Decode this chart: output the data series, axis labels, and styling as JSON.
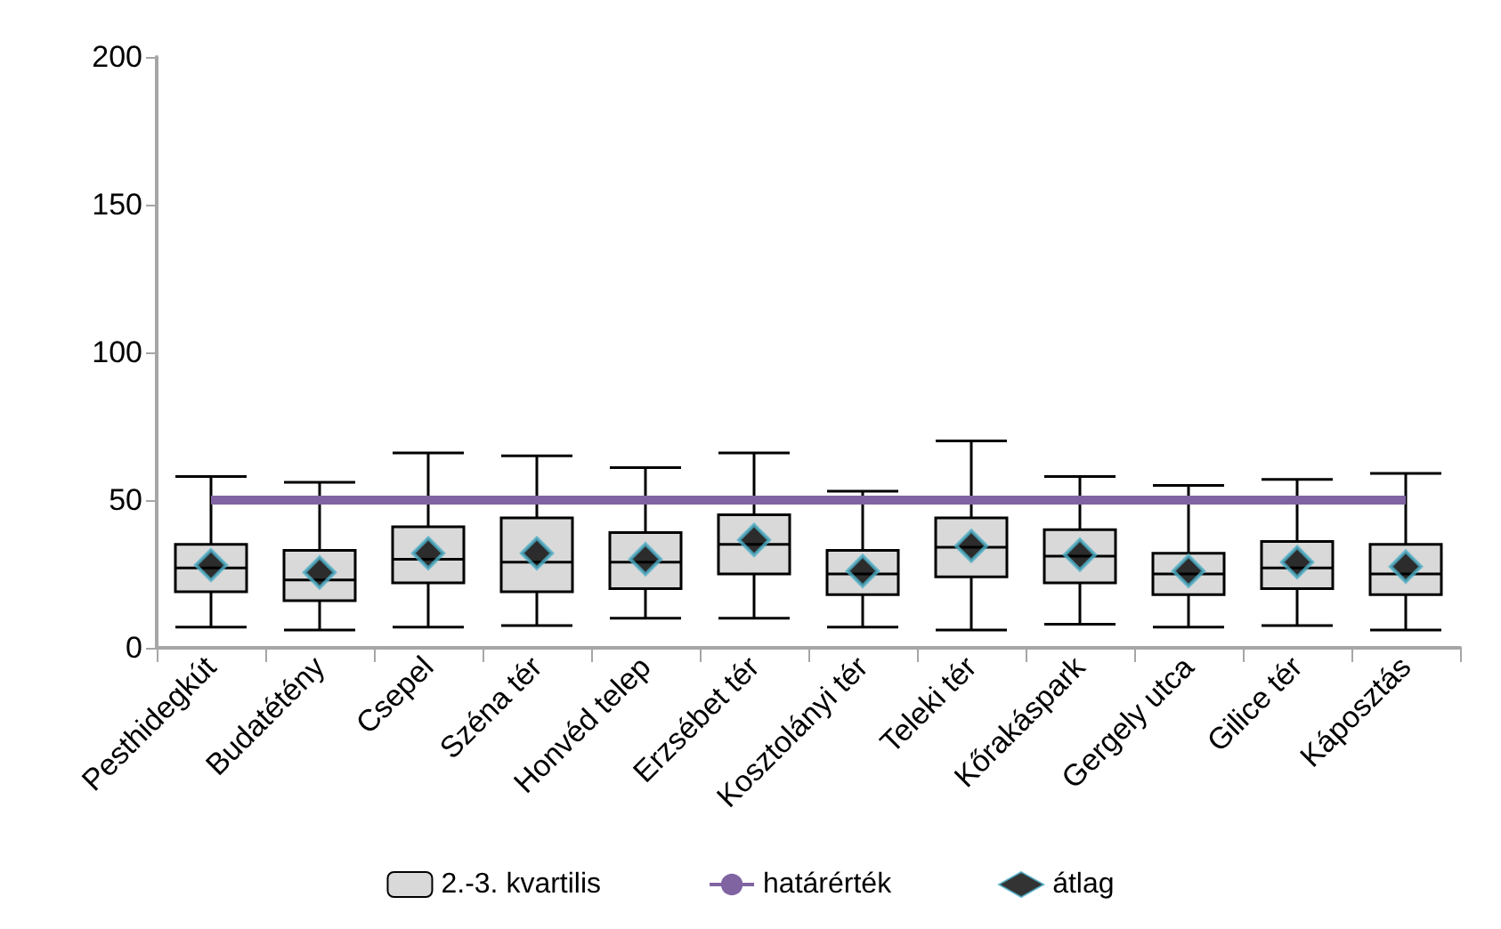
{
  "chart_data": {
    "type": "box",
    "categories": [
      "Pesthidegkút",
      "Budatétény",
      "Csepel",
      "Széna tér",
      "Honvéd telep",
      "Erzsébet tér",
      "Kosztolányi tér",
      "Teleki tér",
      "Kőrakáspark",
      "Gergely utca",
      "Gilice tér",
      "Káposztás"
    ],
    "ylim": [
      0,
      200
    ],
    "yticks": [
      0,
      50,
      100,
      150,
      200
    ],
    "grid": false,
    "legend": "bottom",
    "series": [
      {
        "name": "2.-3. kvartilis",
        "color": "#d9d9d9",
        "boxes": [
          {
            "low": 7,
            "q1": 19,
            "median": 27,
            "q3": 35,
            "high": 58
          },
          {
            "low": 6,
            "q1": 16,
            "median": 23,
            "q3": 33,
            "high": 56
          },
          {
            "low": 7,
            "q1": 22,
            "median": 30,
            "q3": 41,
            "high": 66
          },
          {
            "low": 7.5,
            "q1": 19,
            "median": 29,
            "q3": 44,
            "high": 65
          },
          {
            "low": 10,
            "q1": 20,
            "median": 29,
            "q3": 39,
            "high": 61
          },
          {
            "low": 10,
            "q1": 25,
            "median": 35,
            "q3": 45,
            "high": 66
          },
          {
            "low": 7,
            "q1": 18,
            "median": 25,
            "q3": 33,
            "high": 53
          },
          {
            "low": 6,
            "q1": 24,
            "median": 34,
            "q3": 44,
            "high": 70
          },
          {
            "low": 8,
            "q1": 22,
            "median": 31,
            "q3": 40,
            "high": 58
          },
          {
            "low": 7,
            "q1": 18,
            "median": 25,
            "q3": 32,
            "high": 55
          },
          {
            "low": 7.5,
            "q1": 20,
            "median": 27,
            "q3": 36,
            "high": 57
          },
          {
            "low": 6,
            "q1": 18,
            "median": 25,
            "q3": 35,
            "high": 59
          }
        ]
      },
      {
        "name": "határérték",
        "type": "line",
        "color": "#8064a2",
        "values": [
          50,
          50,
          50,
          50,
          50,
          50,
          50,
          50,
          50,
          50,
          50,
          50
        ]
      },
      {
        "name": "átlag",
        "type": "scatter",
        "color": "#000000",
        "marker": "diamond",
        "x": [
          "Pesthidegkút",
          "Budatétény",
          "Csepel",
          "Széna tér",
          "Honvéd telep",
          "Erzsébet tér",
          "Kosztolányi tér",
          "Teleki tér",
          "Kőrakáspark",
          "Gergely utca",
          "Gilice tér",
          "Káposztás"
        ],
        "values": [
          28,
          25.5,
          32,
          32,
          30,
          36.5,
          26,
          34.5,
          31.5,
          26,
          29,
          27.5
        ]
      }
    ]
  }
}
